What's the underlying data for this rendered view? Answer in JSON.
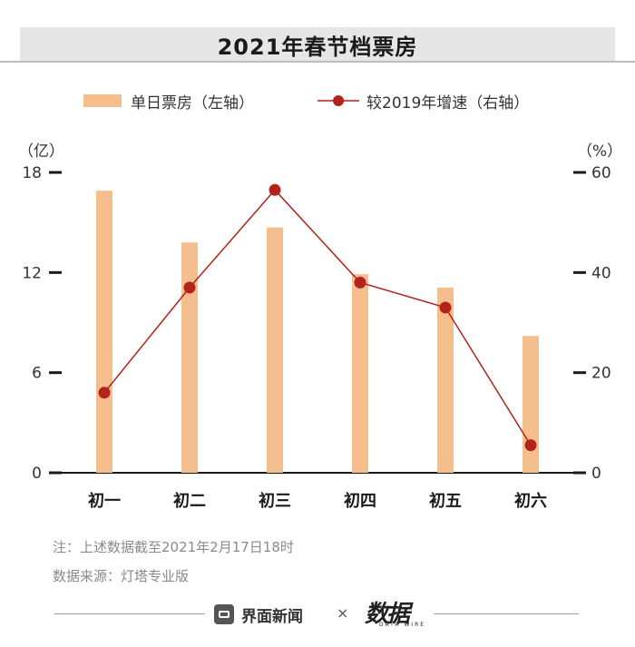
{
  "title": "2021年春节档票房",
  "legend": {
    "bar_label": "单日票房（左轴）",
    "line_label": "较2019年增速（右轴）"
  },
  "units": {
    "left": "（亿）",
    "right": "（%）"
  },
  "colors": {
    "bar": "#f4be8d",
    "line": "#b3221b",
    "axis": "#1a1a1a",
    "title_bg": "#e6e6e6"
  },
  "chart_data": {
    "type": "bar",
    "categories": [
      "初一",
      "初二",
      "初三",
      "初四",
      "初五",
      "初六"
    ],
    "series": [
      {
        "name": "单日票房（左轴）",
        "type": "bar",
        "axis": "left",
        "values": [
          16.9,
          13.8,
          14.7,
          11.9,
          11.1,
          8.2
        ]
      },
      {
        "name": "较2019年增速（右轴）",
        "type": "line",
        "axis": "right",
        "values": [
          16,
          37,
          56.5,
          38,
          33,
          5.5
        ]
      }
    ],
    "y_left": {
      "ticks": [
        "0",
        "6",
        "12",
        "18"
      ],
      "range": [
        0,
        18
      ]
    },
    "y_right": {
      "ticks": [
        "0",
        "20",
        "40",
        "60"
      ],
      "range": [
        0,
        60
      ]
    },
    "grid": false,
    "legend_position": "top"
  },
  "notes": {
    "note": "注：上述数据截至2021年2月17日18时",
    "source": "数据来源：灯塔专业版"
  },
  "footer": {
    "brand": "界面新闻",
    "times": "×",
    "logo_text": "数据",
    "logo_sub": "DATA WIRE"
  }
}
